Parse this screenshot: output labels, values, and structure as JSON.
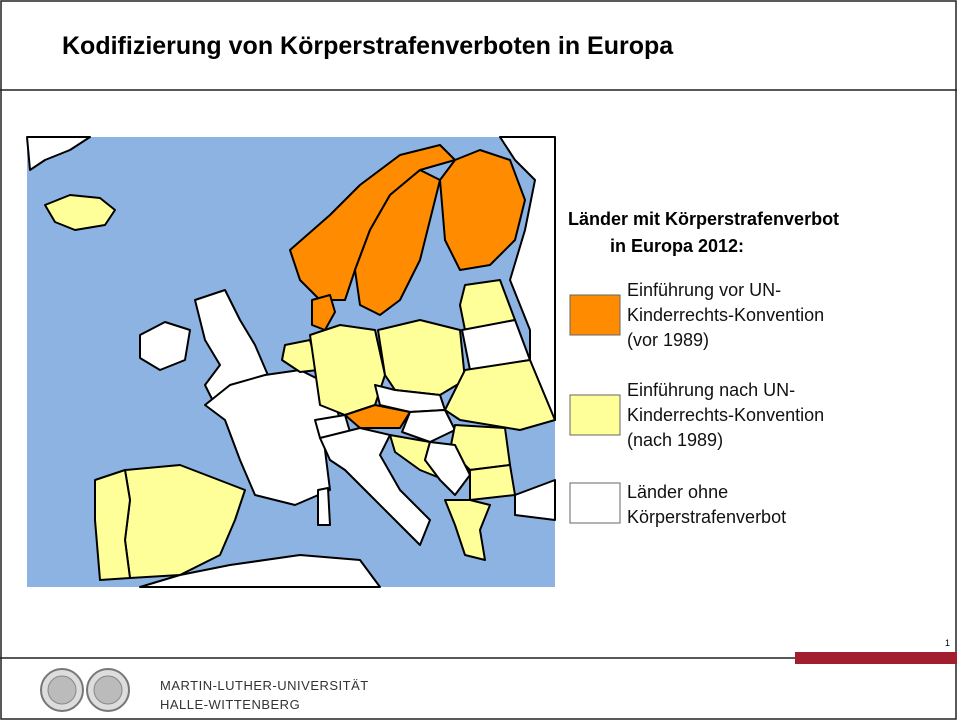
{
  "header": {
    "title": "Kodifizierung von Körperstrafenverboten in Europa"
  },
  "legend": {
    "title": [
      "Länder mit Körperstrafenverbot",
      "in Europa 2012:"
    ],
    "items": [
      {
        "color": "#ff8c00",
        "lines": [
          "Einführung vor UN-",
          "Kinderrechts-Konvention",
          "(vor 1989)"
        ]
      },
      {
        "color": "#ffff99",
        "lines": [
          "Einführung nach UN-",
          "Kinderrechts-Konvention",
          "(nach 1989)"
        ]
      },
      {
        "color": "#ffffff",
        "lines": [
          "Länder ohne",
          "Körperstrafenverbot"
        ]
      }
    ]
  },
  "footer": {
    "university": [
      "MARTIN-LUTHER-UNIVERSITÄT",
      "HALLE-WITTENBERG"
    ],
    "page_number": "1"
  }
}
